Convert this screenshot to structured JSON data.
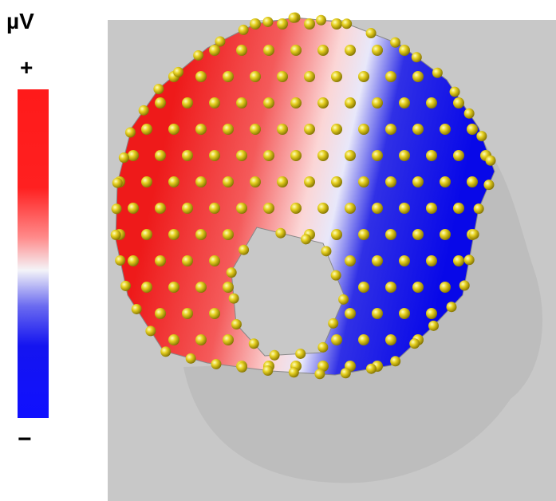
{
  "colorbar": {
    "unit": "µV",
    "max_label": "+",
    "min_label": "−"
  }
}
